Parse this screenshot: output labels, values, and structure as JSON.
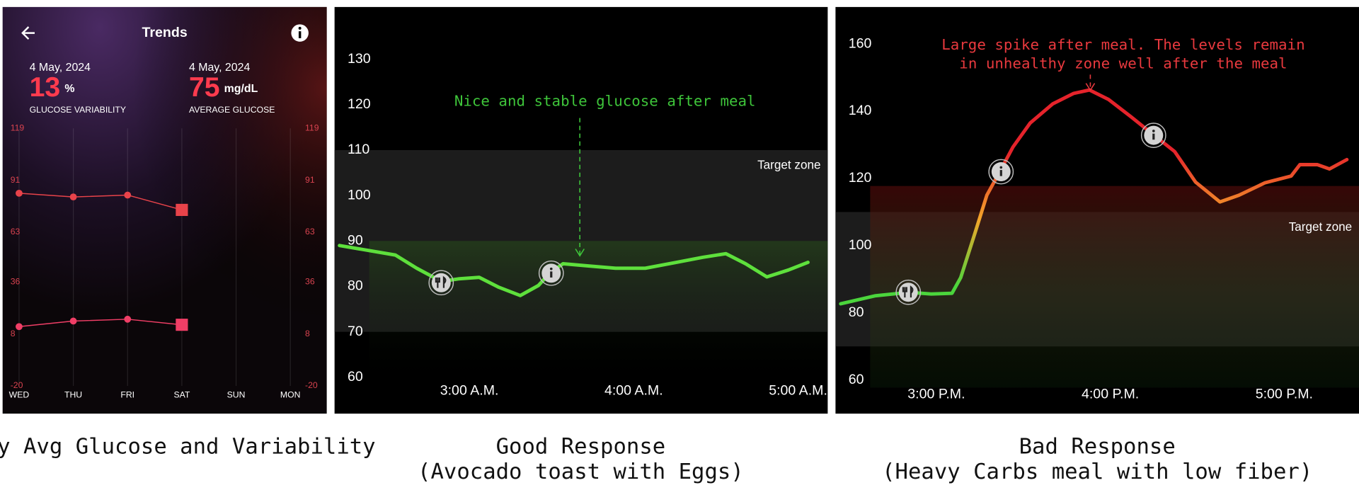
{
  "chart_data": [
    {
      "type": "line",
      "header_title": "Trends",
      "stats": [
        {
          "date": "4 May, 2024",
          "value": 13,
          "unit": "%",
          "label": "GLUCOSE VARIABILITY"
        },
        {
          "date": "4 May, 2024",
          "value": 75,
          "unit": "mg/dL",
          "label": "AVERAGE GLUCOSE"
        }
      ],
      "categories": [
        "WED",
        "THU",
        "FRI",
        "SAT",
        "SUN",
        "MON"
      ],
      "series": [
        {
          "color": "#e8434a",
          "values": [
            84,
            82,
            83,
            75,
            null,
            null
          ]
        },
        {
          "color": "#f03e66",
          "values": [
            12,
            15,
            16,
            13,
            null,
            null
          ]
        }
      ],
      "ylim": [
        -20,
        119
      ],
      "yticks": [
        -20,
        8,
        36,
        63,
        91,
        119
      ],
      "caption": [
        "Daily Avg Glucose and Variability"
      ]
    },
    {
      "type": "line",
      "x": [
        2.21,
        2.55,
        2.68,
        2.83,
        2.94,
        3.06,
        3.18,
        3.31,
        3.42,
        3.49,
        3.57,
        3.73,
        3.89,
        4.07,
        4.26,
        4.42,
        4.56,
        4.68,
        4.81,
        4.94,
        5.06
      ],
      "series": [
        {
          "color": "#5ee03c",
          "values": [
            89,
            86.9,
            84,
            81.1,
            81.7,
            82,
            79.8,
            78,
            80.2,
            83,
            85,
            84.5,
            84,
            84,
            85.3,
            86.4,
            87.2,
            85,
            82.1,
            83.6,
            85.3
          ]
        }
      ],
      "xlim": [
        2.18,
        5.18
      ],
      "xticks": [
        {
          "value": 3,
          "label": "3:00 A.M."
        },
        {
          "value": 4,
          "label": "4:00 A.M."
        },
        {
          "value": 5,
          "label": "5:00 A.M."
        }
      ],
      "ylim": [
        52,
        141.5
      ],
      "yticks": [
        60,
        70,
        80,
        90,
        100,
        110,
        120,
        130
      ],
      "target_zone": [
        70,
        110
      ],
      "target_zone_label": "Target zone",
      "annotation": [
        "Nice and stable glucose after meal"
      ],
      "annotation_color": "#3ec43a",
      "caption": [
        "Good Response",
        "(Avocado toast with Eggs)"
      ]
    },
    {
      "type": "line",
      "x": [
        2.45,
        2.65,
        2.84,
        2.97,
        3.09,
        3.14,
        3.22,
        3.29,
        3.37,
        3.44,
        3.54,
        3.67,
        3.79,
        3.88,
        3.99,
        4.12,
        4.25,
        4.37,
        4.49,
        4.63,
        4.74,
        4.89,
        5.04,
        5.09,
        5.19,
        5.26,
        5.36
      ],
      "series": [
        {
          "color": "#e5232b",
          "gradient": [
            "#4bd53c",
            "#f4a52a",
            "#e5232b"
          ],
          "values": [
            82.7,
            85.1,
            86.1,
            85.6,
            85.8,
            90.5,
            103.4,
            115,
            122.5,
            129.3,
            136.5,
            142.2,
            145.3,
            146.3,
            143.5,
            138.3,
            132.9,
            128,
            118.9,
            113,
            115,
            118.7,
            120.7,
            124.1,
            124.1,
            122.8,
            125.6
          ]
        }
      ],
      "xlim": [
        2.42,
        5.43
      ],
      "xticks": [
        {
          "value": 3,
          "label": "3:00 P.M."
        },
        {
          "value": 4,
          "label": "4:00 P.M."
        },
        {
          "value": 5,
          "label": "5:00 P.M."
        }
      ],
      "ylim": [
        50,
        171
      ],
      "yticks": [
        60,
        80,
        100,
        120,
        140,
        160
      ],
      "target_zone": [
        70,
        110
      ],
      "target_zone_label": "Target zone",
      "annotation": [
        "Large spike after meal. The levels remain",
        "in unhealthy zone well after the meal"
      ],
      "annotation_color": "#e8393e",
      "caption": [
        "Bad Response",
        "(Heavy Carbs meal with low fiber)"
      ]
    }
  ]
}
